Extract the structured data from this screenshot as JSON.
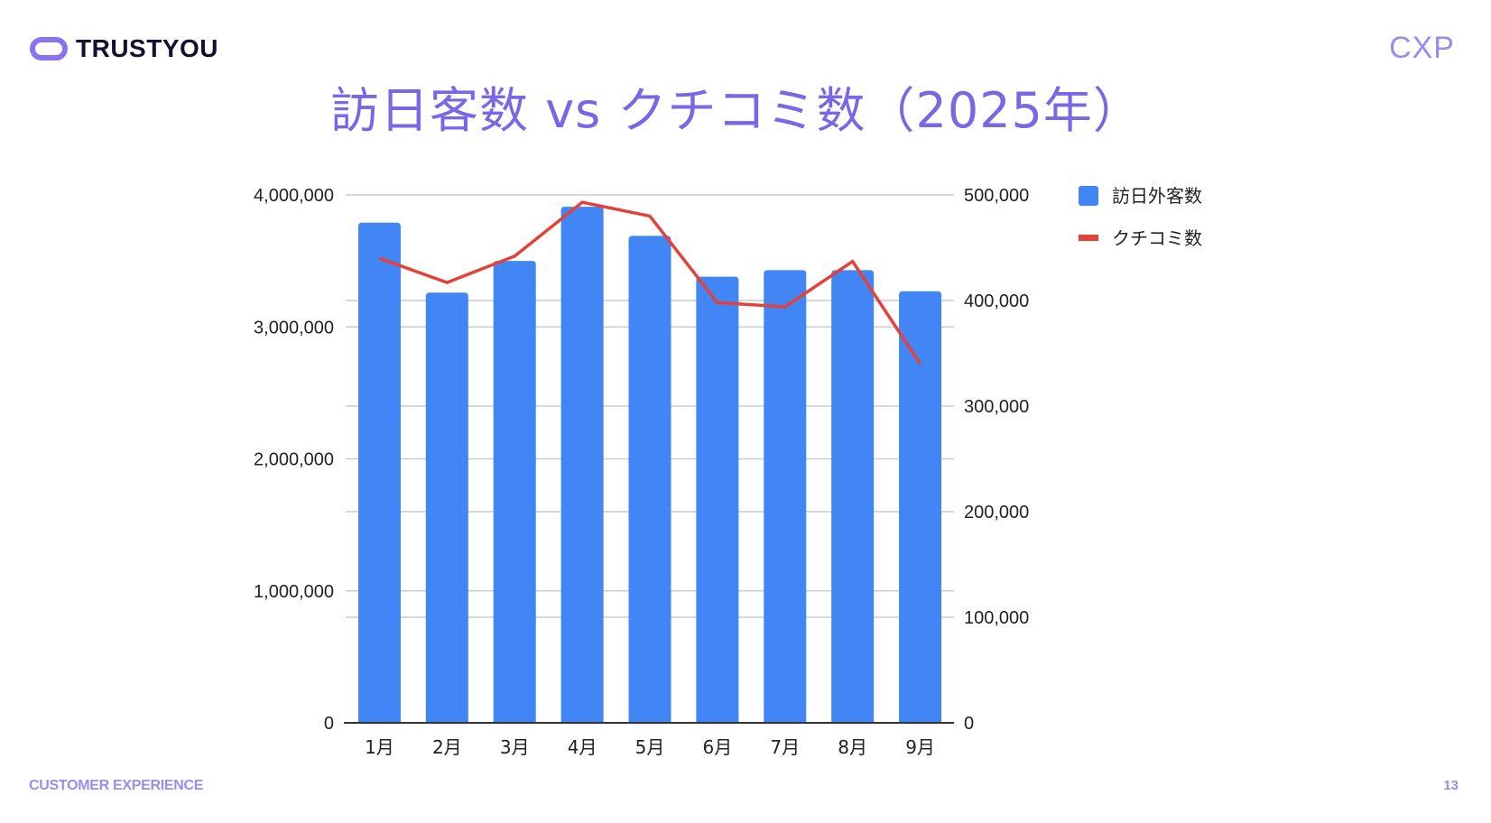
{
  "header": {
    "logo_text": "TRUSTYOU",
    "badge": "CXP"
  },
  "slide": {
    "title": "訪日客数 vs クチコミ数（2025年）",
    "footer_left": "CUSTOMER EXPERIENCE",
    "page_number": "13"
  },
  "colors": {
    "bar": "#4285f4",
    "line": "#e2423a",
    "accent": "#7b67e6",
    "grid": "#cccccc",
    "axis": "#333333"
  },
  "chart_data": {
    "type": "bar",
    "title": "訪日客数 vs クチコミ数（2025年）",
    "categories": [
      "1月",
      "2月",
      "3月",
      "4月",
      "5月",
      "6月",
      "7月",
      "8月",
      "9月"
    ],
    "series": [
      {
        "name": "訪日外客数",
        "type": "bar",
        "axis": "left",
        "color": "#4285f4",
        "values": [
          3790000,
          3260000,
          3500000,
          3910000,
          3690000,
          3380000,
          3430000,
          3430000,
          3270000
        ]
      },
      {
        "name": "クチコミ数",
        "type": "line",
        "axis": "right",
        "color": "#e2423a",
        "values": [
          440000,
          417000,
          442000,
          493000,
          480000,
          398000,
          394000,
          437000,
          340000
        ]
      }
    ],
    "y_left": {
      "ticks": [
        "0",
        "1,000,000",
        "2,000,000",
        "3,000,000",
        "4,000,000"
      ],
      "ylim": [
        0,
        4000000
      ]
    },
    "y_right": {
      "ticks": [
        "0",
        "100,000",
        "200,000",
        "300,000",
        "400,000",
        "500,000"
      ],
      "ylim": [
        0,
        500000
      ]
    },
    "xlabel": "",
    "ylabel": "",
    "grid": true,
    "legend_position": "right-top",
    "legend": [
      "訪日外客数",
      "クチコミ数"
    ]
  }
}
